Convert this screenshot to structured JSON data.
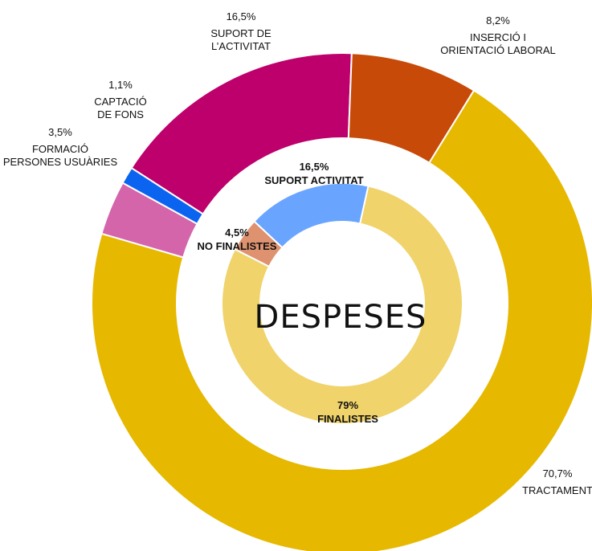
{
  "chart_data": {
    "type": "pie",
    "title": "DESPESES",
    "outer_ring": [
      {
        "value_label": "70,7%",
        "value": 70.7,
        "lines": [
          "TRACTAMENT"
        ],
        "color": "#e6b800"
      },
      {
        "value_label": "3,5%",
        "value": 3.5,
        "lines": [
          "FORMACIÓ",
          "PERSONES USUÀRIES"
        ],
        "color": "#d465aa"
      },
      {
        "value_label": "1,1%",
        "value": 1.1,
        "lines": [
          "CAPTACIÓ",
          "DE FONS"
        ],
        "color": "#0a64f0"
      },
      {
        "value_label": "16,5%",
        "value": 16.5,
        "lines": [
          "SUPORT DE",
          "L’ACTIVITAT"
        ],
        "color": "#bd006c"
      },
      {
        "value_label": "8,2%",
        "value": 8.2,
        "lines": [
          "INSERCIÓ I",
          "ORIENTACIÓ LABORAL"
        ],
        "color": "#c74a09"
      }
    ],
    "inner_ring": [
      {
        "value_label": "79%",
        "value": 79,
        "lines": [
          "FINALISTES"
        ],
        "color": "#f0d36a"
      },
      {
        "value_label": "4,5%",
        "value": 4.5,
        "lines": [
          "NO FINALISTES"
        ],
        "color": "#de9270"
      },
      {
        "value_label": "16,5%",
        "value": 16.5,
        "lines": [
          "SUPORT ACTIVITAT"
        ],
        "color": "#69a5ff"
      }
    ]
  }
}
